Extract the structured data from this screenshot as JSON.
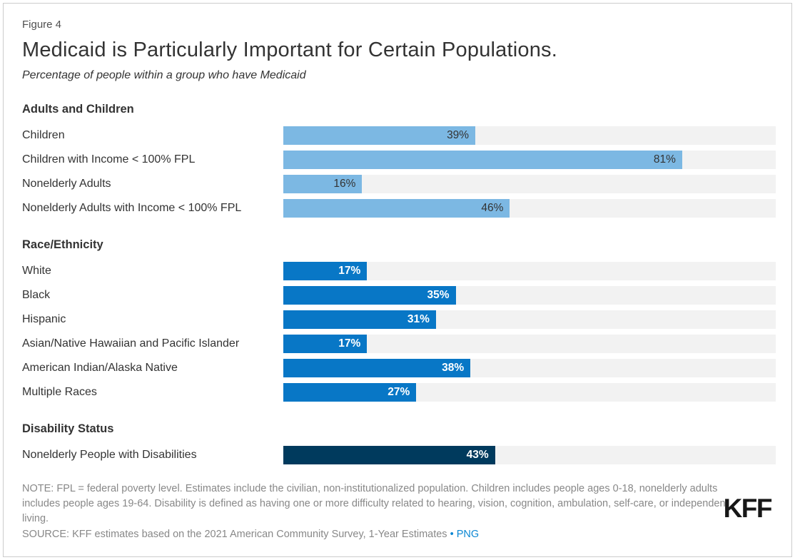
{
  "page": {
    "figure_label": "Figure 4",
    "title": "Medicaid is Particularly Important for Certain Populations.",
    "subtitle": "Percentage of people within a group who have Medicaid"
  },
  "chart_data": {
    "type": "bar",
    "orientation": "horizontal",
    "value_axis": {
      "min": 0,
      "max": 100,
      "unit": "%"
    },
    "grid": false,
    "legend": "none",
    "sections": [
      {
        "header": "Adults and Children",
        "bar_color": "#7CB8E3",
        "value_color": "#333333",
        "rows": [
          {
            "label": "Children",
            "value": 39,
            "display": "39%"
          },
          {
            "label": "Children with Income < 100% FPL",
            "value": 81,
            "display": "81%"
          },
          {
            "label": "Nonelderly Adults",
            "value": 16,
            "display": "16%"
          },
          {
            "label": "Nonelderly Adults with Income < 100% FPL",
            "value": 46,
            "display": "46%"
          }
        ]
      },
      {
        "header": "Race/Ethnicity",
        "bar_color": "#0877C6",
        "value_color": "#FFFFFF",
        "rows": [
          {
            "label": "White",
            "value": 17,
            "display": "17%"
          },
          {
            "label": "Black",
            "value": 35,
            "display": "35%"
          },
          {
            "label": "Hispanic",
            "value": 31,
            "display": "31%"
          },
          {
            "label": "Asian/Native Hawaiian and Pacific Islander",
            "value": 17,
            "display": "17%"
          },
          {
            "label": "American Indian/Alaska Native",
            "value": 38,
            "display": "38%"
          },
          {
            "label": "Multiple Races",
            "value": 27,
            "display": "27%"
          }
        ]
      },
      {
        "header": "Disability Status",
        "bar_color": "#003A5D",
        "value_color": "#FFFFFF",
        "rows": [
          {
            "label": "Nonelderly People with Disabilities",
            "value": 43,
            "display": "43%"
          }
        ]
      }
    ],
    "track_color": "#F2F2F2"
  },
  "footer": {
    "note": "NOTE: FPL = federal poverty level. Estimates include the civilian, non-institutionalized population. Children includes people ages 0-18, nonelderly adults includes people ages 19-64. Disability is defined as having one or more difficulty related to hearing, vision, cognition, ambulation, self-care, or independent living.",
    "source": "SOURCE: KFF estimates based on the 2021 American Community Survey, 1-Year Estimates",
    "separator": "•",
    "png_link": "PNG",
    "logo": "KFF"
  },
  "colors": {
    "link_blue": "#0B87D3",
    "text_dark": "#333333",
    "note_gray": "#888888",
    "border": "#CCCCCC"
  }
}
